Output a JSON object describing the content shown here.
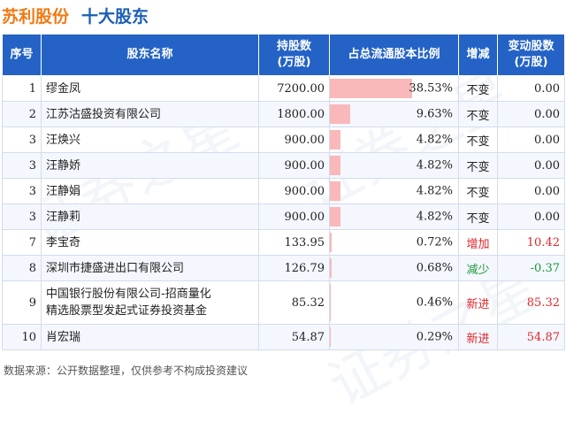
{
  "header": {
    "company": "苏利股份",
    "subtitle": "十大股东"
  },
  "watermark": "证券之星",
  "columns": {
    "rank": "序号",
    "name": "股东名称",
    "shares_l1": "持股数",
    "shares_l2": "(万股)",
    "ratio": "占总流通股本比例",
    "change": "增减",
    "change_amt_l1": "变动股数",
    "change_amt_l2": "(万股)"
  },
  "rows": [
    {
      "rank": "1",
      "name_l1": "缪金凤",
      "name_l2": "",
      "shares": "7200.00",
      "ratio": "38.53%",
      "ratio_value": 38.53,
      "change": "不变",
      "change_type": "none",
      "change_amount": "0.00"
    },
    {
      "rank": "2",
      "name_l1": "江苏沽盛投资有限公司",
      "name_l2": "",
      "shares": "1800.00",
      "ratio": "9.63%",
      "ratio_value": 9.63,
      "change": "不变",
      "change_type": "none",
      "change_amount": "0.00"
    },
    {
      "rank": "3",
      "name_l1": "汪焕兴",
      "name_l2": "",
      "shares": "900.00",
      "ratio": "4.82%",
      "ratio_value": 4.82,
      "change": "不变",
      "change_type": "none",
      "change_amount": "0.00"
    },
    {
      "rank": "3",
      "name_l1": "汪静娇",
      "name_l2": "",
      "shares": "900.00",
      "ratio": "4.82%",
      "ratio_value": 4.82,
      "change": "不变",
      "change_type": "none",
      "change_amount": "0.00"
    },
    {
      "rank": "3",
      "name_l1": "汪静娟",
      "name_l2": "",
      "shares": "900.00",
      "ratio": "4.82%",
      "ratio_value": 4.82,
      "change": "不变",
      "change_type": "none",
      "change_amount": "0.00"
    },
    {
      "rank": "3",
      "name_l1": "汪静莉",
      "name_l2": "",
      "shares": "900.00",
      "ratio": "4.82%",
      "ratio_value": 4.82,
      "change": "不变",
      "change_type": "none",
      "change_amount": "0.00"
    },
    {
      "rank": "7",
      "name_l1": "李宝奇",
      "name_l2": "",
      "shares": "133.95",
      "ratio": "0.72%",
      "ratio_value": 0.72,
      "change": "增加",
      "change_type": "up",
      "change_amount": "10.42"
    },
    {
      "rank": "8",
      "name_l1": "深圳市捷盛进出口有限公司",
      "name_l2": "",
      "shares": "126.79",
      "ratio": "0.68%",
      "ratio_value": 0.68,
      "change": "减少",
      "change_type": "down",
      "change_amount": "-0.37"
    },
    {
      "rank": "9",
      "name_l1": "中国银行股份有限公司-招商量化",
      "name_l2": "精选股票型发起式证券投资基金",
      "shares": "85.32",
      "ratio": "0.46%",
      "ratio_value": 0.46,
      "change": "新进",
      "change_type": "up",
      "change_amount": "85.32"
    },
    {
      "rank": "10",
      "name_l1": "肖宏瑞",
      "name_l2": "",
      "shares": "54.87",
      "ratio": "0.29%",
      "ratio_value": 0.29,
      "change": "新进",
      "change_type": "up",
      "change_amount": "54.87"
    }
  ],
  "footer": "数据来源：公开数据整理，仅供参考不构成投资建议",
  "colors": {
    "header_bg": "#2463c5",
    "title_company": "#f07a12",
    "title_sub": "#1a5fb4",
    "bar": "#f9b8ba",
    "up": "#e0262a",
    "down": "#1a9a3a"
  }
}
